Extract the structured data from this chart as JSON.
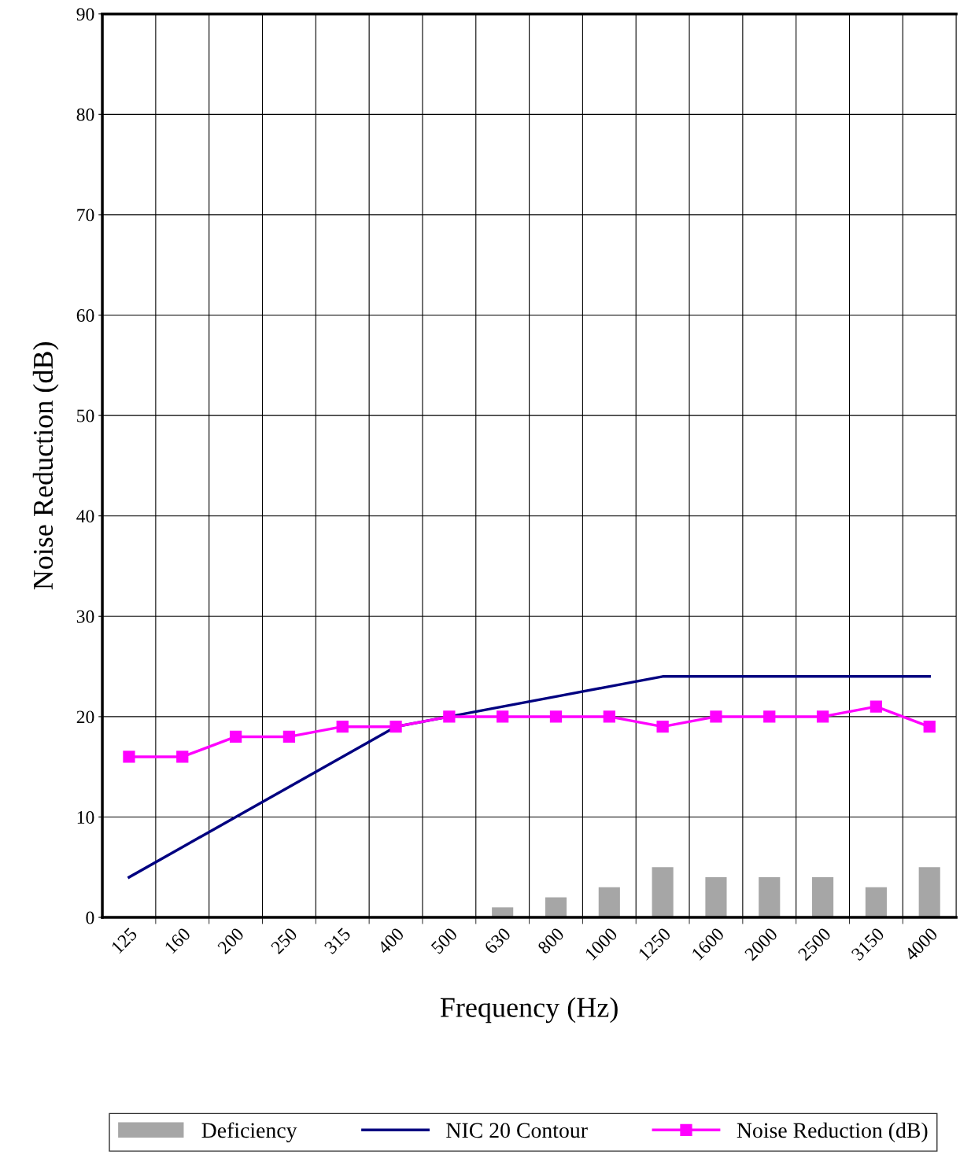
{
  "chart_data": {
    "type": "bar",
    "xlabel": "Frequency (Hz)",
    "ylabel": "Noise Reduction (dB)",
    "categories": [
      "125",
      "160",
      "200",
      "250",
      "315",
      "400",
      "500",
      "630",
      "800",
      "1000",
      "1250",
      "1600",
      "2000",
      "2500",
      "3150",
      "4000"
    ],
    "series": [
      {
        "name": "Deficiency",
        "color": "#a6a6a6",
        "values": [
          0,
          0,
          0,
          0,
          0,
          0,
          0,
          1,
          2,
          3,
          5,
          4,
          4,
          4,
          3,
          5
        ]
      },
      {
        "name": "NIC 20 Contour",
        "type": "line",
        "color": "#000080",
        "marker": "none",
        "line_style": "solid",
        "values": [
          4,
          7,
          10,
          13,
          16,
          19,
          20,
          21,
          22,
          23,
          24,
          24,
          24,
          24,
          24,
          24
        ]
      },
      {
        "name": "Noise Reduction (dB)",
        "type": "line",
        "color": "#ff00ff",
        "marker": "square",
        "line_style": "solid",
        "values": [
          16,
          16,
          18,
          18,
          19,
          19,
          20,
          20,
          20,
          20,
          19,
          20,
          20,
          20,
          21,
          19
        ]
      }
    ],
    "ylim": [
      0,
      90
    ],
    "yticks": [
      0,
      10,
      20,
      30,
      40,
      50,
      60,
      70,
      80,
      90
    ],
    "grid": true,
    "legend": "bottom"
  }
}
